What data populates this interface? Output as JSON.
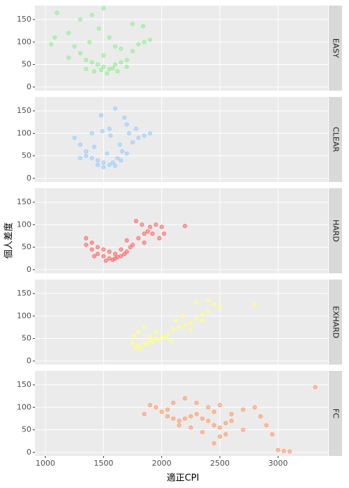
{
  "chart_data": {
    "type": "scatter",
    "facets": true,
    "grid": true,
    "x_label": "適正CPI",
    "y_label": "個人差度",
    "xlim": [
      910,
      3430
    ],
    "ylim": [
      -8,
      181
    ],
    "xticks": [
      1000,
      1500,
      2000,
      2500,
      3000
    ],
    "yticks": [
      0,
      50,
      100,
      150
    ],
    "series": [
      {
        "name": "EASY",
        "color": "#90ee90",
        "x": [
          1100,
          1500,
          1400,
          1050,
          1080,
          1200,
          1250,
          1300,
          1350,
          1400,
          1450,
          1500,
          1550,
          1600,
          1650,
          1700,
          1750,
          1800,
          1850,
          1900,
          1350,
          1420,
          1480,
          1530,
          1580,
          1620,
          1380,
          1460,
          1550,
          1650,
          1300,
          1750,
          1840,
          1200,
          1500,
          1700,
          1600
        ],
        "values": [
          165,
          175,
          160,
          95,
          110,
          120,
          90,
          75,
          60,
          55,
          50,
          45,
          40,
          50,
          55,
          60,
          80,
          95,
          100,
          105,
          40,
          35,
          38,
          30,
          42,
          35,
          100,
          130,
          110,
          85,
          150,
          140,
          135,
          65,
          70,
          45,
          90
        ]
      },
      {
        "name": "CLEAR",
        "color": "#99ccff",
        "x": [
          1250,
          1300,
          1350,
          1400,
          1450,
          1500,
          1550,
          1600,
          1650,
          1700,
          1750,
          1800,
          1850,
          1900,
          1600,
          1680,
          1700,
          1550,
          1480,
          1400,
          1350,
          1450,
          1500,
          1580,
          1620,
          1660,
          1720,
          1780,
          1300,
          1420,
          1530,
          1640,
          1560,
          1490
        ],
        "values": [
          90,
          75,
          60,
          45,
          40,
          35,
          30,
          28,
          40,
          55,
          80,
          90,
          95,
          100,
          155,
          135,
          120,
          110,
          140,
          100,
          50,
          30,
          25,
          35,
          45,
          60,
          100,
          110,
          45,
          70,
          55,
          75,
          95,
          105
        ]
      },
      {
        "name": "HARD",
        "color": "#ff6666",
        "x": [
          1350,
          1350,
          1400,
          1450,
          1500,
          1550,
          1600,
          1650,
          1700,
          1750,
          1800,
          1850,
          1900,
          1950,
          2000,
          2200,
          1780,
          1830,
          1700,
          1650,
          1400,
          1450,
          1550,
          1600,
          1500,
          1420,
          1520,
          1580,
          1620,
          1680,
          1730,
          1880,
          1920,
          1980,
          2020,
          1850
        ],
        "values": [
          70,
          55,
          45,
          35,
          30,
          25,
          25,
          30,
          40,
          55,
          70,
          80,
          95,
          100,
          95,
          97,
          108,
          100,
          65,
          45,
          60,
          50,
          40,
          35,
          45,
          30,
          20,
          22,
          28,
          35,
          50,
          85,
          80,
          70,
          80,
          60
        ]
      },
      {
        "name": "EXHARD",
        "color": "#ffff88",
        "x": [
          1750,
          1800,
          1850,
          1900,
          1950,
          2000,
          2050,
          2100,
          2150,
          2200,
          2250,
          2300,
          2350,
          2400,
          2500,
          2800,
          2400,
          2300,
          1800,
          1850,
          1900,
          1780,
          1820,
          1870,
          1930,
          1980,
          2030,
          2080,
          1760,
          2120,
          2250,
          2180,
          2350,
          2450,
          1950
        ],
        "values": [
          40,
          35,
          40,
          45,
          50,
          55,
          60,
          70,
          75,
          80,
          85,
          95,
          105,
          110,
          120,
          125,
          135,
          130,
          65,
          75,
          55,
          30,
          28,
          38,
          42,
          48,
          52,
          45,
          55,
          90,
          70,
          100,
          90,
          125,
          65
        ]
      },
      {
        "name": "FC",
        "color": "#ff9966",
        "x": [
          1850,
          1900,
          1950,
          2000,
          2050,
          2100,
          2150,
          2200,
          2250,
          2300,
          2350,
          2400,
          2450,
          2500,
          2550,
          2600,
          2700,
          2800,
          2850,
          2900,
          2950,
          3000,
          3050,
          3100,
          3320,
          2450,
          2500,
          2200,
          2300,
          2400,
          2150,
          2250,
          2350,
          2500,
          2600,
          2700,
          2050,
          2100,
          2450,
          2550
        ],
        "values": [
          85,
          105,
          100,
          90,
          80,
          75,
          70,
          75,
          80,
          85,
          75,
          70,
          60,
          55,
          65,
          85,
          95,
          100,
          80,
          60,
          40,
          5,
          3,
          2,
          145,
          20,
          35,
          120,
          110,
          100,
          60,
          55,
          45,
          105,
          70,
          50,
          95,
          110,
          90,
          40
        ]
      }
    ]
  }
}
